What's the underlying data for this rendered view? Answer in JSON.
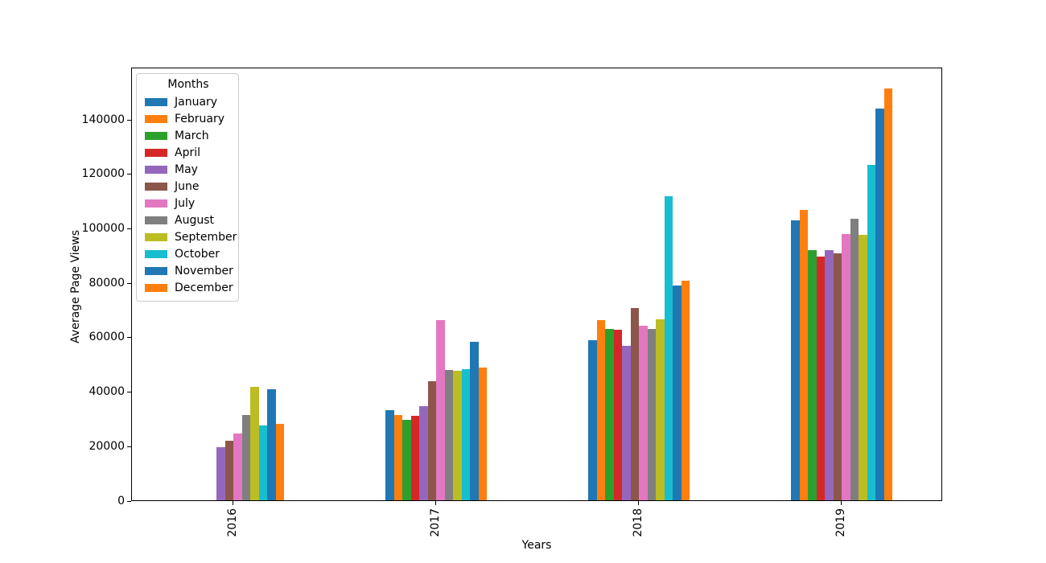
{
  "chart_data": {
    "type": "bar",
    "title": "",
    "xlabel": "Years",
    "ylabel": "Average Page Views",
    "legend_title": "Months",
    "legend_position": "upper left",
    "grid": false,
    "categories": [
      "2016",
      "2017",
      "2018",
      "2019"
    ],
    "yticks": [
      0,
      20000,
      40000,
      60000,
      80000,
      100000,
      120000,
      140000
    ],
    "ylim": [
      0,
      159200
    ],
    "bar_group_fraction": 0.5,
    "series": [
      {
        "name": "January",
        "color": "#1f77b4",
        "values": [
          null,
          33100,
          58900,
          102900
        ]
      },
      {
        "name": "February",
        "color": "#ff7f0e",
        "values": [
          null,
          31300,
          66200,
          106500
        ]
      },
      {
        "name": "March",
        "color": "#2ca02c",
        "values": [
          null,
          29400,
          63000,
          91800
        ]
      },
      {
        "name": "April",
        "color": "#d62728",
        "values": [
          null,
          31000,
          62500,
          89600
        ]
      },
      {
        "name": "May",
        "color": "#9467bd",
        "values": [
          19500,
          34500,
          56800,
          92000
        ]
      },
      {
        "name": "June",
        "color": "#8c564b",
        "values": [
          21900,
          43600,
          70600,
          90800
        ]
      },
      {
        "name": "July",
        "color": "#e377c2",
        "values": [
          24400,
          66100,
          64000,
          97700
        ]
      },
      {
        "name": "August",
        "color": "#7f7f7f",
        "values": [
          31300,
          47900,
          63000,
          103400
        ]
      },
      {
        "name": "September",
        "color": "#bcbd22",
        "values": [
          41700,
          47600,
          66500,
          97600
        ]
      },
      {
        "name": "October",
        "color": "#17becf",
        "values": [
          27600,
          48100,
          111700,
          123200
        ]
      },
      {
        "name": "November",
        "color": "#1f77b4",
        "values": [
          40900,
          58200,
          79000,
          143900
        ]
      },
      {
        "name": "December",
        "color": "#ff7f0e",
        "values": [
          28000,
          48700,
          80600,
          151200
        ]
      }
    ]
  }
}
